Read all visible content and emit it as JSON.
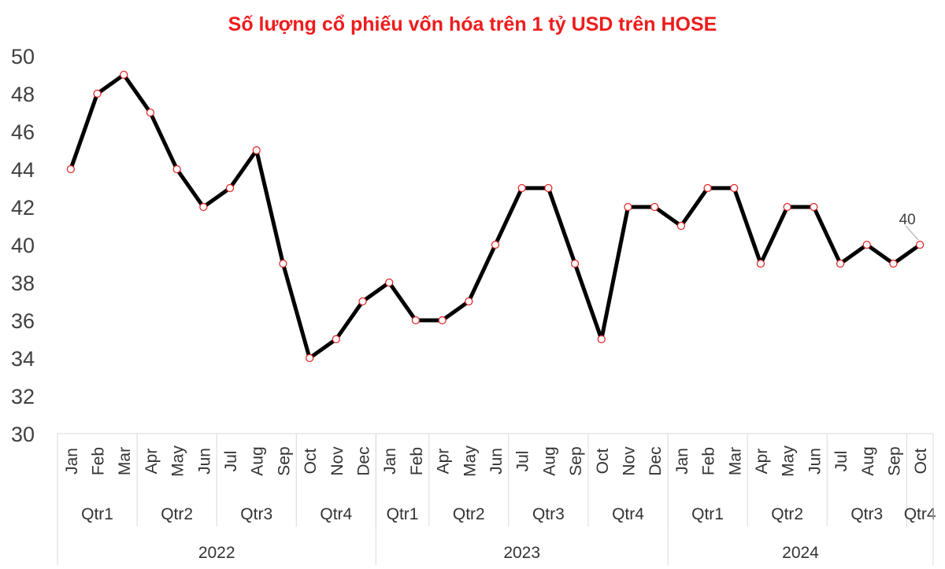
{
  "chart_data": {
    "type": "line",
    "title": "Số lượng cổ phiếu vốn hóa trên 1 tỷ USD trên HOSE",
    "title_color": "#ee1c1c",
    "line_color": "#000000",
    "marker_stroke_color": "#e02020",
    "marker_fill_color": "#ffffff",
    "ylim": [
      30,
      50
    ],
    "yticks": [
      30,
      32,
      34,
      36,
      38,
      40,
      42,
      44,
      46,
      48,
      50
    ],
    "grid": false,
    "legend": "none",
    "months": [
      "Jan",
      "Feb",
      "Mar",
      "Apr",
      "May",
      "Jun",
      "Jul",
      "Aug",
      "Sep",
      "Oct",
      "Nov",
      "Dec",
      "Jan",
      "Feb",
      "Apr",
      "May",
      "Jun",
      "Jul",
      "Aug",
      "Sep",
      "Oct",
      "Nov",
      "Dec",
      "Jan",
      "Feb",
      "Mar",
      "Apr",
      "May",
      "Jun",
      "Jul",
      "Aug",
      "Sep",
      "Oct"
    ],
    "quarters": [
      {
        "label": "Qtr1",
        "count": 3
      },
      {
        "label": "Qtr2",
        "count": 3
      },
      {
        "label": "Qtr3",
        "count": 3
      },
      {
        "label": "Qtr4",
        "count": 3
      },
      {
        "label": "Qtr1",
        "count": 2
      },
      {
        "label": "Qtr2",
        "count": 3
      },
      {
        "label": "Qtr3",
        "count": 3
      },
      {
        "label": "Qtr4",
        "count": 3
      },
      {
        "label": "Qtr1",
        "count": 3
      },
      {
        "label": "Qtr2",
        "count": 3
      },
      {
        "label": "Qtr3",
        "count": 3
      },
      {
        "label": "Qtr4",
        "count": 1
      }
    ],
    "years": [
      {
        "label": "2022",
        "count": 12
      },
      {
        "label": "2023",
        "count": 11
      },
      {
        "label": "2024",
        "count": 10
      }
    ],
    "values": [
      44,
      48,
      49,
      47,
      44,
      42,
      43,
      45,
      39,
      34,
      35,
      37,
      38,
      36,
      36,
      37,
      40,
      43,
      43,
      39,
      35,
      42,
      42,
      41,
      43,
      43,
      39,
      42,
      42,
      39,
      40,
      39,
      40
    ],
    "data_labels": [
      {
        "index": 32,
        "text": "40"
      }
    ]
  }
}
